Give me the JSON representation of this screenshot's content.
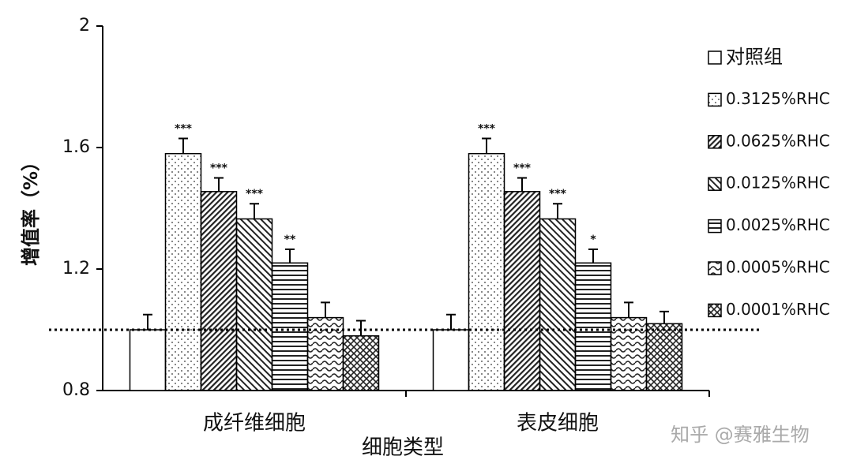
{
  "chart_data": {
    "type": "bar",
    "categories": [
      "成纤维细胞",
      "表皮细胞"
    ],
    "xlabel": "细胞类型",
    "ylabel": "增值率（%）",
    "ylim": [
      0.8,
      2
    ],
    "yticks": [
      0.8,
      1.2,
      1.6,
      2
    ],
    "reference_line": 1,
    "series": [
      {
        "name": "对照组",
        "pattern": "none",
        "color": "#000000",
        "values": [
          1.0,
          1.0
        ],
        "errors": [
          0.05,
          0.05
        ]
      },
      {
        "name": "0.3125%RHC",
        "pattern": "dots",
        "color": "#000000",
        "values": [
          1.58,
          1.58
        ],
        "errors": [
          0.05,
          0.05
        ],
        "labels": [
          "***",
          "***"
        ]
      },
      {
        "name": "0.0625%RHC",
        "pattern": "diag-right",
        "color": "#000000",
        "values": [
          1.455,
          1.455
        ],
        "errors": [
          0.045,
          0.045
        ],
        "labels": [
          "***",
          "***"
        ]
      },
      {
        "name": "0.0125%RHC",
        "pattern": "diag-left",
        "color": "#000000",
        "values": [
          1.365,
          1.365
        ],
        "errors": [
          0.05,
          0.05
        ],
        "labels": [
          "***",
          "***"
        ]
      },
      {
        "name": "0.0025%RHC",
        "pattern": "horizontal",
        "color": "#000000",
        "values": [
          1.22,
          1.22
        ],
        "errors": [
          0.045,
          0.045
        ],
        "labels": [
          "**",
          "*"
        ]
      },
      {
        "name": "0.0005%RHC",
        "pattern": "wave",
        "color": "#000000",
        "values": [
          1.04,
          1.04
        ],
        "errors": [
          0.05,
          0.05
        ]
      },
      {
        "name": "0.0001%RHC",
        "pattern": "cross",
        "color": "#000000",
        "values": [
          0.98,
          1.02
        ],
        "errors": [
          0.05,
          0.04
        ]
      }
    ],
    "watermark": "知乎 @赛雅生物"
  }
}
